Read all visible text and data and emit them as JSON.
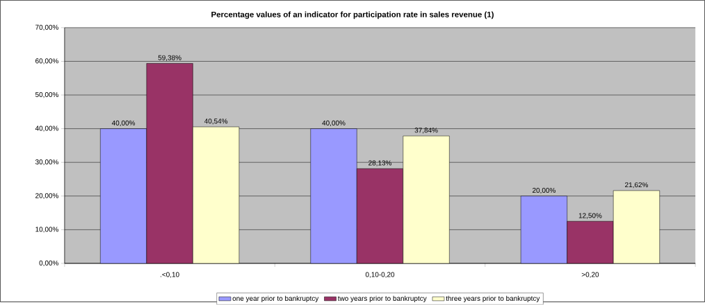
{
  "chart_data": {
    "type": "bar",
    "title": "Percentage values of an indicator for participation rate in sales revenue (1)",
    "categories": [
      ".<0,10",
      "0,10-0,20",
      ">0,20"
    ],
    "series": [
      {
        "name": "one year prior to bankruptcy",
        "color": "#9999ff",
        "values": [
          40.0,
          40.0,
          20.0
        ],
        "value_labels": [
          "40,00%",
          "40,00%",
          "20,00%"
        ]
      },
      {
        "name": "two years prior to bankruptcy",
        "color": "#993366",
        "values": [
          59.38,
          28.13,
          12.5
        ],
        "value_labels": [
          "59,38%",
          "28,13%",
          "12,50%"
        ]
      },
      {
        "name": "three years prior to bankruptcy",
        "color": "#ffffcc",
        "values": [
          40.54,
          37.84,
          21.62
        ],
        "value_labels": [
          "40,54%",
          "37,84%",
          "21,62%"
        ]
      }
    ],
    "ylim": [
      0,
      70
    ],
    "yticks": [
      {
        "value": 0,
        "label": "0,00%"
      },
      {
        "value": 10,
        "label": "10,00%"
      },
      {
        "value": 20,
        "label": "20,00%"
      },
      {
        "value": 30,
        "label": "30,00%"
      },
      {
        "value": 40,
        "label": "40,00%"
      },
      {
        "value": 50,
        "label": "50,00%"
      },
      {
        "value": 60,
        "label": "60,00%"
      },
      {
        "value": 70,
        "label": "70,00%"
      }
    ],
    "grid": "y",
    "legend": "bottom"
  }
}
